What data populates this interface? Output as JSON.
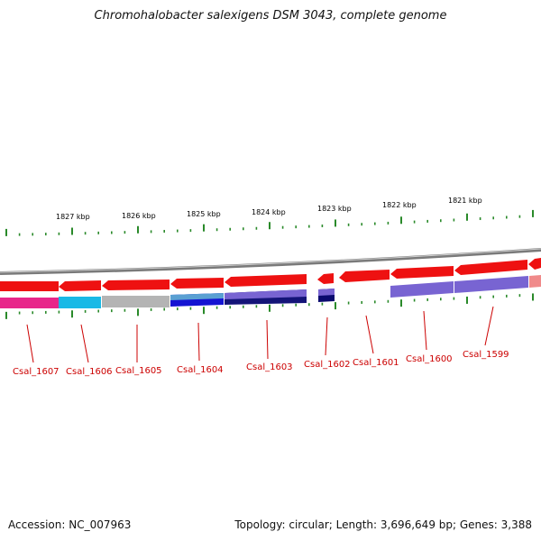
{
  "title": "Chromohalobacter salexigens DSM 3043, complete genome",
  "footer": {
    "accession": "Accession: NC_007963",
    "topology": "Topology: circular; Length: 3,696,649 bp; Genes: 3,388"
  },
  "scale_labels": [
    "1827 kbp",
    "1826 kbp",
    "1825 kbp",
    "1824 kbp",
    "1823 kbp",
    "1822 kbp",
    "1821 kbp"
  ],
  "genes": [
    {
      "name": "Csal_1607",
      "color": "#e8268a"
    },
    {
      "name": "Csal_1606",
      "color": "#19b9e6"
    },
    {
      "name": "Csal_1605",
      "color": "#b4b4b4"
    },
    {
      "name": "Csal_1604",
      "color": "#1414d2"
    },
    {
      "name": "Csal_1603",
      "color": "#141478"
    },
    {
      "name": "Csal_1602",
      "color": "#0a0a6e"
    },
    {
      "name": "Csal_1601",
      "color": "#ffffff"
    },
    {
      "name": "Csal_1600",
      "color": "#7864d2"
    },
    {
      "name": "Csal_1599",
      "color": "#7864d2"
    }
  ],
  "colors": {
    "cds": "#ee1111",
    "tick": "#2a8a2a",
    "backbone": "#888888",
    "label": "#cc0000"
  }
}
